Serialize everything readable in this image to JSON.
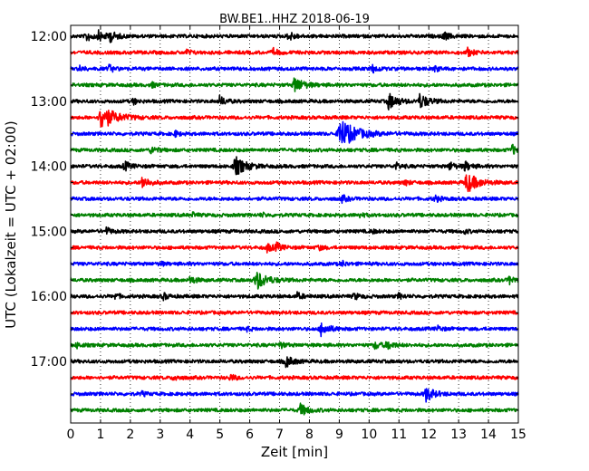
{
  "chart_data": {
    "type": "line",
    "title": "BW.BE1..HHZ 2018-06-19",
    "xlabel": "Zeit  [min]",
    "ylabel": "UTC (Lokalzeit = UTC + 02:00)",
    "xlim": [
      0,
      15
    ],
    "x_ticks": [
      "0",
      "1",
      "2",
      "3",
      "4",
      "5",
      "6",
      "7",
      "8",
      "9",
      "10",
      "11",
      "12",
      "13",
      "14",
      "15"
    ],
    "y_tick_labels": [
      "12:00",
      "13:00",
      "14:00",
      "15:00",
      "16:00",
      "17:00"
    ],
    "grid": "vertical-dotted",
    "color_cycle": [
      "#000000",
      "#ff0000",
      "#0000ff",
      "#008000"
    ],
    "trace_minutes_per_row": 15,
    "rows": [
      {
        "start": "12:00",
        "color": "#000000",
        "events": [
          {
            "t": 0.55,
            "amp": 0.35
          },
          {
            "t": 0.95,
            "amp": 0.35
          },
          {
            "t": 1.3,
            "amp": 0.4
          },
          {
            "t": 7.3,
            "amp": 0.35
          },
          {
            "t": 12.5,
            "amp": 0.3
          }
        ]
      },
      {
        "start": "12:15",
        "color": "#ff0000",
        "events": [
          {
            "t": 3.9,
            "amp": 0.2
          },
          {
            "t": 6.8,
            "amp": 0.25
          },
          {
            "t": 13.3,
            "amp": 0.3
          }
        ]
      },
      {
        "start": "12:30",
        "color": "#0000ff",
        "events": [
          {
            "t": 0.3,
            "amp": 0.2
          },
          {
            "t": 1.3,
            "amp": 0.25
          },
          {
            "t": 10.1,
            "amp": 0.3
          },
          {
            "t": 12.2,
            "amp": 0.2
          }
        ]
      },
      {
        "start": "12:45",
        "color": "#008000",
        "events": [
          {
            "t": 2.7,
            "amp": 0.2
          },
          {
            "t": 7.5,
            "amp": 0.6
          }
        ]
      },
      {
        "start": "13:00",
        "color": "#000000",
        "events": [
          {
            "t": 2.1,
            "amp": 0.2
          },
          {
            "t": 5.0,
            "amp": 0.35
          },
          {
            "t": 10.65,
            "amp": 0.6
          },
          {
            "t": 11.7,
            "amp": 0.55
          }
        ]
      },
      {
        "start": "13:15",
        "color": "#ff0000",
        "events": [
          {
            "t": 1.0,
            "amp": 1.0
          }
        ]
      },
      {
        "start": "13:30",
        "color": "#0000ff",
        "events": [
          {
            "t": 3.5,
            "amp": 0.2
          },
          {
            "t": 9.0,
            "amp": 1.2
          }
        ]
      },
      {
        "start": "13:45",
        "color": "#008000",
        "events": [
          {
            "t": 2.7,
            "amp": 0.3
          },
          {
            "t": 14.8,
            "amp": 0.35
          }
        ]
      },
      {
        "start": "14:00",
        "color": "#000000",
        "events": [
          {
            "t": 1.8,
            "amp": 0.35
          },
          {
            "t": 5.5,
            "amp": 0.75
          },
          {
            "t": 10.9,
            "amp": 0.25
          },
          {
            "t": 12.7,
            "amp": 0.3
          },
          {
            "t": 13.2,
            "amp": 0.35
          }
        ]
      },
      {
        "start": "14:15",
        "color": "#ff0000",
        "events": [
          {
            "t": 2.4,
            "amp": 0.45
          },
          {
            "t": 11.2,
            "amp": 0.2
          },
          {
            "t": 13.25,
            "amp": 0.8
          }
        ]
      },
      {
        "start": "14:30",
        "color": "#0000ff",
        "events": [
          {
            "t": 9.1,
            "amp": 0.25
          },
          {
            "t": 12.2,
            "amp": 0.25
          }
        ]
      },
      {
        "start": "14:45",
        "color": "#008000",
        "events": [
          {
            "t": 4.1,
            "amp": 0.15
          },
          {
            "t": 6.4,
            "amp": 0.15
          },
          {
            "t": 9.7,
            "amp": 0.15
          }
        ]
      },
      {
        "start": "15:00",
        "color": "#000000",
        "events": [
          {
            "t": 1.2,
            "amp": 0.25
          },
          {
            "t": 10.1,
            "amp": 0.15
          },
          {
            "t": 13.2,
            "amp": 0.15
          }
        ]
      },
      {
        "start": "15:15",
        "color": "#ff0000",
        "events": [
          {
            "t": 6.6,
            "amp": 0.3
          },
          {
            "t": 6.9,
            "amp": 0.3
          },
          {
            "t": 8.3,
            "amp": 0.2
          }
        ]
      },
      {
        "start": "15:30",
        "color": "#0000ff",
        "events": [
          {
            "t": 3.0,
            "amp": 0.15
          },
          {
            "t": 9.1,
            "amp": 0.2
          }
        ]
      },
      {
        "start": "15:45",
        "color": "#008000",
        "events": [
          {
            "t": 4.0,
            "amp": 0.3
          },
          {
            "t": 6.2,
            "amp": 0.75
          },
          {
            "t": 14.7,
            "amp": 0.3
          }
        ]
      },
      {
        "start": "16:00",
        "color": "#000000",
        "events": [
          {
            "t": 1.5,
            "amp": 0.2
          },
          {
            "t": 3.1,
            "amp": 0.25
          },
          {
            "t": 7.6,
            "amp": 0.25
          },
          {
            "t": 9.5,
            "amp": 0.25
          },
          {
            "t": 11.0,
            "amp": 0.2
          }
        ]
      },
      {
        "start": "16:15",
        "color": "#ff0000",
        "events": []
      },
      {
        "start": "16:30",
        "color": "#0000ff",
        "events": [
          {
            "t": 5.9,
            "amp": 0.15
          },
          {
            "t": 8.4,
            "amp": 0.5
          },
          {
            "t": 12.3,
            "amp": 0.2
          }
        ]
      },
      {
        "start": "16:45",
        "color": "#008000",
        "events": [
          {
            "t": 0.2,
            "amp": 0.2
          },
          {
            "t": 7.0,
            "amp": 0.25
          },
          {
            "t": 10.2,
            "amp": 0.3
          },
          {
            "t": 10.6,
            "amp": 0.35
          }
        ]
      },
      {
        "start": "17:00",
        "color": "#000000",
        "events": [
          {
            "t": 7.2,
            "amp": 0.45
          }
        ]
      },
      {
        "start": "17:15",
        "color": "#ff0000",
        "events": [
          {
            "t": 3.45,
            "amp": 0.25
          },
          {
            "t": 5.35,
            "amp": 0.25
          }
        ]
      },
      {
        "start": "17:30",
        "color": "#0000ff",
        "events": [
          {
            "t": 2.4,
            "amp": 0.15
          },
          {
            "t": 11.9,
            "amp": 0.55
          }
        ]
      },
      {
        "start": "17:45",
        "color": "#008000",
        "events": [
          {
            "t": 7.7,
            "amp": 0.45
          }
        ]
      }
    ]
  }
}
